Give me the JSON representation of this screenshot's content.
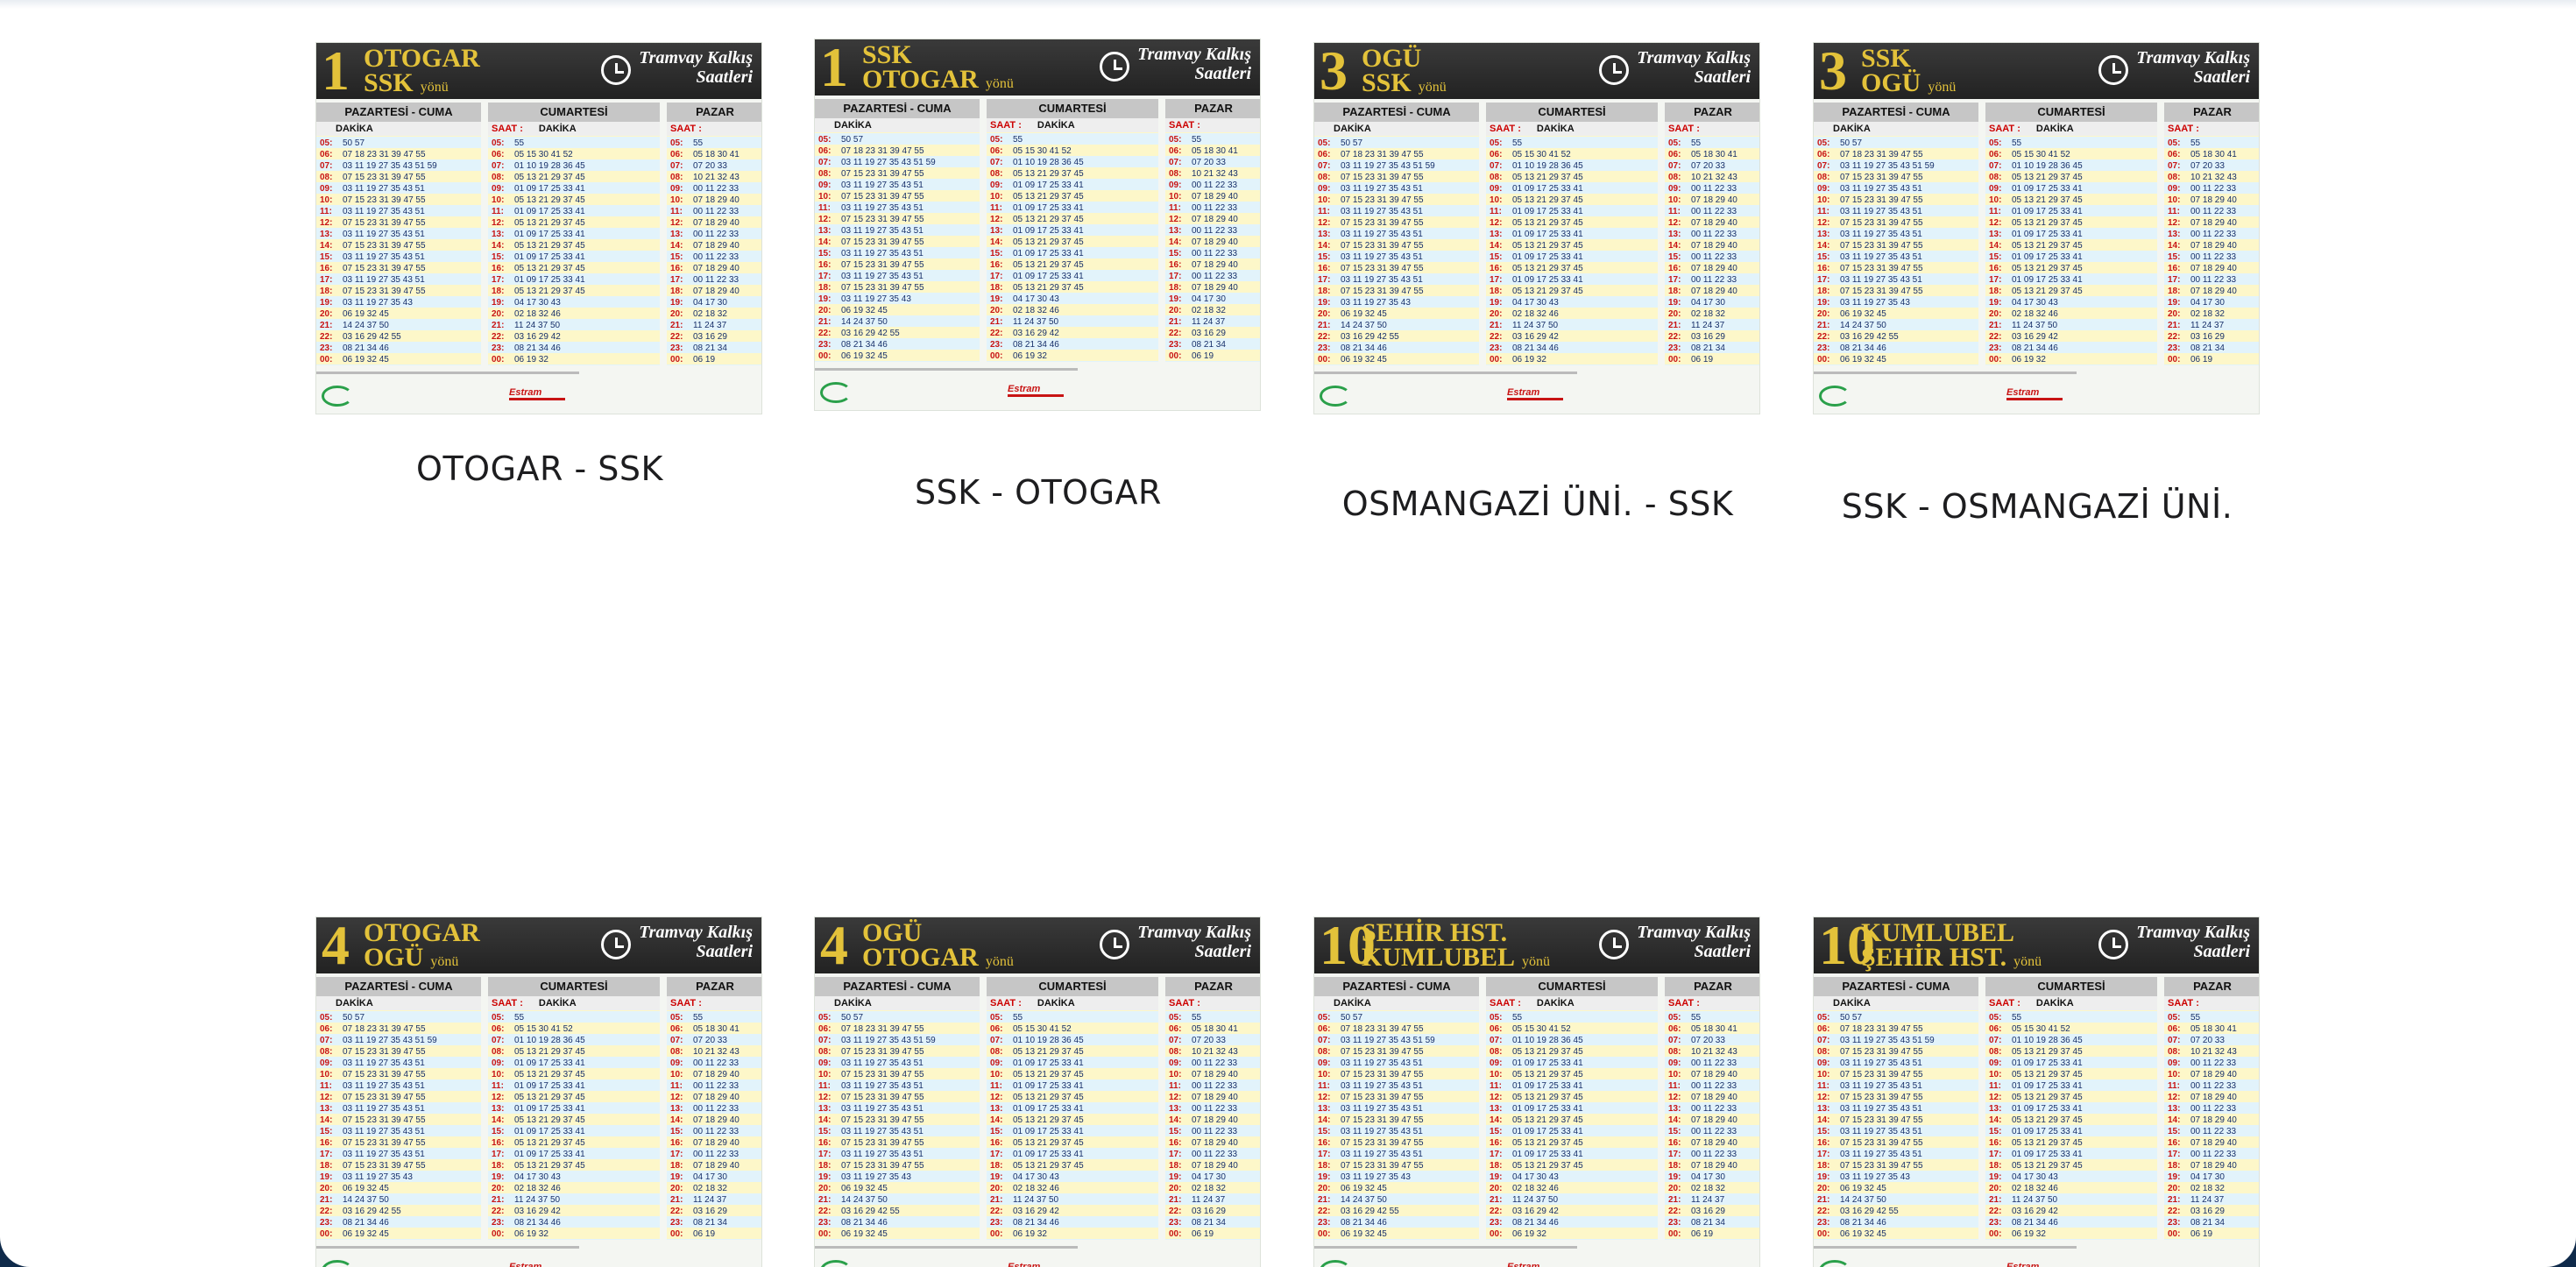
{
  "top_row": [
    {
      "caption": "OTOGAR - SSK",
      "no": "1",
      "line1": "OTOGAR",
      "line2": "SSK"
    },
    {
      "caption": "SSK - OTOGAR",
      "no": "1",
      "line1": "SSK",
      "line2": "OTOGAR"
    },
    {
      "caption": "OSMANGAZİ ÜNİ. - SSK",
      "no": "3",
      "line1": "OGÜ",
      "line2": "SSK"
    },
    {
      "caption": "SSK - OSMANGAZİ ÜNİ.",
      "no": "3",
      "line1": "SSK",
      "line2": "OGÜ"
    }
  ],
  "bottom_row": [
    {
      "no": "4",
      "line1": "OTOGAR",
      "line2": "OGÜ"
    },
    {
      "no": "4",
      "line1": "OGÜ",
      "line2": "OTOGAR"
    },
    {
      "no": "10",
      "line1": "ŞEHİR HST.",
      "line2": "KUMLUBEL"
    },
    {
      "no": "10",
      "line1": "KUMLUBEL",
      "line2": "ŞEHİR HST."
    }
  ],
  "schedule_labels": {
    "direction_suffix": "yönü",
    "header_title_1": "Tramvay Kalkış",
    "header_title_2": "Saatleri",
    "weekday": "PAZARTESİ - CUMA",
    "saturday": "CUMARTESİ",
    "sunday": "PAZAR",
    "hour": "SAAT",
    "minute": "DAKİKA",
    "brand": "Estram"
  },
  "hours": [
    "05:",
    "06:",
    "07:",
    "08:",
    "09:",
    "10:",
    "11:",
    "12:",
    "13:",
    "14:",
    "15:",
    "16:",
    "17:",
    "18:",
    "19:",
    "20:",
    "21:",
    "22:",
    "23:",
    "00:"
  ],
  "minutes": {
    "weekday": [
      "50 57",
      "07 18 23 31 39 47 55",
      "03 11 19 27 35 43 51 59",
      "07 15 23 31 39 47 55",
      "03 11 19 27 35 43 51",
      "07 15 23 31 39 47 55",
      "03 11 19 27 35 43 51",
      "07 15 23 31 39 47 55",
      "03 11 19 27 35 43 51",
      "07 15 23 31 39 47 55",
      "03 11 19 27 35 43 51",
      "07 15 23 31 39 47 55",
      "03 11 19 27 35 43 51",
      "07 15 23 31 39 47 55",
      "03 11 19 27 35 43",
      "06 19 32 45",
      "14 24 37 50",
      "03 16 29 42 55",
      "08 21 34 46",
      "06 19 32 45"
    ],
    "saturday": [
      "55",
      "05 15 30 41 52",
      "01 10 19 28 36 45",
      "05 13 21 29 37 45",
      "01 09 17 25 33 41",
      "05 13 21 29 37 45",
      "01 09 17 25 33 41",
      "05 13 21 29 37 45",
      "01 09 17 25 33 41",
      "05 13 21 29 37 45",
      "01 09 17 25 33 41",
      "05 13 21 29 37 45",
      "01 09 17 25 33 41",
      "05 13 21 29 37 45",
      "04 17 30 43",
      "02 18 32 46",
      "11 24 37 50",
      "03 16 29 42",
      "08 21 34 46",
      "06 19 32"
    ],
    "sunday": [
      "55",
      "05 18 30 41",
      "07 20 33",
      "10 21 32 43",
      "00 11 22 33",
      "07 18 29 40",
      "00 11 22 33",
      "07 18 29 40",
      "00 11 22 33",
      "07 18 29 40",
      "00 11 22 33",
      "07 18 29 40",
      "00 11 22 33",
      "07 18 29 40",
      "04 17 30",
      "02 18 32",
      "11 24 37",
      "03 16 29",
      "08 21 34",
      "06 19"
    ]
  }
}
